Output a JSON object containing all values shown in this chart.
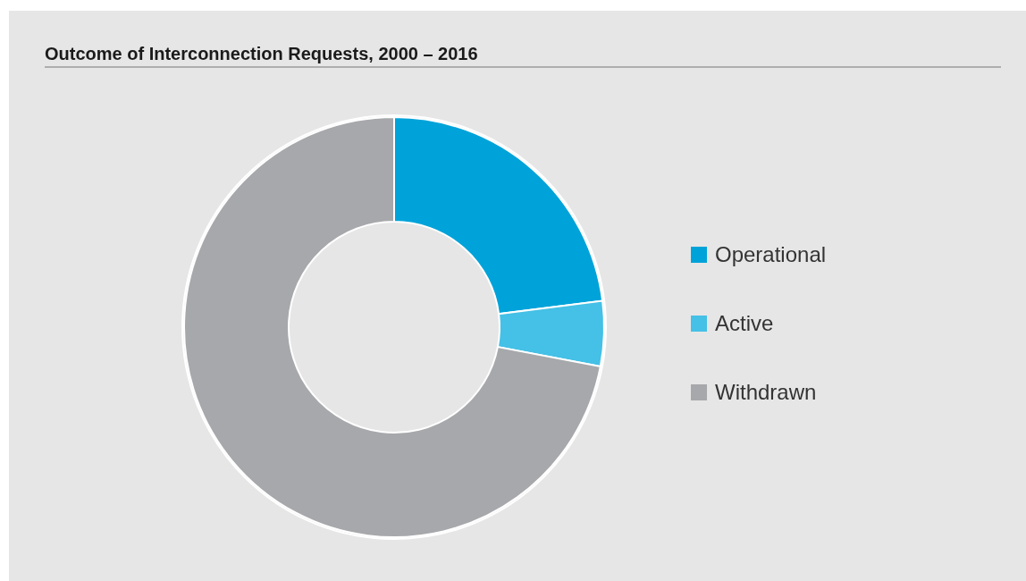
{
  "chart_data": {
    "type": "donut",
    "title": "Outcome of Interconnection Requests, 2000 – 2016",
    "categories": [
      "Operational",
      "Active",
      "Withdrawn"
    ],
    "values": [
      23,
      5,
      72
    ],
    "colors": [
      "#00a3d9",
      "#45c0e6",
      "#a7a8ab"
    ],
    "legend": "right"
  }
}
